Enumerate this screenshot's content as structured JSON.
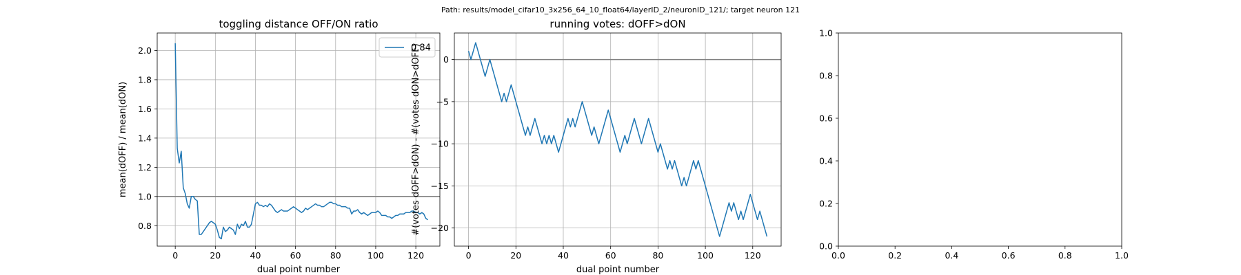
{
  "suptitle": "Path: results/model_cifar10_3x256_64_10_float64/layerID_2/neuronID_121/; target neuron 121",
  "chart_data": [
    {
      "type": "line",
      "title": "toggling distance OFF/ON ratio",
      "xlabel": "dual point number",
      "ylabel": "mean(dOFF) / mean(dON)",
      "xlim": [
        -9,
        132
      ],
      "ylim": [
        0.66,
        2.12
      ],
      "xticks": [
        0,
        20,
        40,
        60,
        80,
        100,
        120
      ],
      "yticks": [
        0.8,
        1.0,
        1.2,
        1.4,
        1.6,
        1.8,
        2.0
      ],
      "ytick_labels": [
        "0.8",
        "1.0",
        "1.2",
        "1.4",
        "1.6",
        "1.8",
        "2.0"
      ],
      "grid": true,
      "hline": 1.0,
      "legend": {
        "position": "upper right",
        "entries": [
          "0.84"
        ]
      },
      "series": [
        {
          "name": "0.84",
          "color": "#1f77b4",
          "y": [
            2.05,
            1.33,
            1.23,
            1.31,
            1.06,
            1.02,
            0.95,
            0.92,
            1.0,
            1.0,
            0.98,
            0.97,
            0.74,
            0.74,
            0.76,
            0.78,
            0.8,
            0.82,
            0.83,
            0.82,
            0.81,
            0.77,
            0.72,
            0.71,
            0.79,
            0.76,
            0.77,
            0.79,
            0.78,
            0.77,
            0.74,
            0.81,
            0.78,
            0.81,
            0.8,
            0.83,
            0.79,
            0.79,
            0.81,
            0.88,
            0.95,
            0.96,
            0.94,
            0.94,
            0.93,
            0.94,
            0.93,
            0.95,
            0.94,
            0.92,
            0.9,
            0.89,
            0.9,
            0.91,
            0.9,
            0.9,
            0.9,
            0.91,
            0.92,
            0.93,
            0.92,
            0.91,
            0.9,
            0.89,
            0.9,
            0.92,
            0.91,
            0.92,
            0.93,
            0.94,
            0.95,
            0.94,
            0.94,
            0.93,
            0.93,
            0.94,
            0.95,
            0.96,
            0.96,
            0.95,
            0.95,
            0.94,
            0.94,
            0.93,
            0.93,
            0.93,
            0.92,
            0.92,
            0.88,
            0.9,
            0.9,
            0.91,
            0.89,
            0.88,
            0.89,
            0.88,
            0.87,
            0.88,
            0.89,
            0.89,
            0.89,
            0.9,
            0.89,
            0.87,
            0.87,
            0.87,
            0.86,
            0.86,
            0.85,
            0.86,
            0.87,
            0.87,
            0.88,
            0.88,
            0.88,
            0.89,
            0.89,
            0.89,
            0.9,
            0.9,
            0.89,
            0.89,
            0.88,
            0.89,
            0.88,
            0.85,
            0.84
          ]
        }
      ]
    },
    {
      "type": "line",
      "title": "running votes: dOFF>dON",
      "xlabel": "dual point number",
      "ylabel": "#(votes dOFF>dON) - #(votes dON>dOFF)",
      "xlim": [
        -6,
        132
      ],
      "ylim": [
        -22.15,
        3.15
      ],
      "xticks": [
        0,
        20,
        40,
        60,
        80,
        100,
        120
      ],
      "yticks": [
        0,
        -5,
        -10,
        -15,
        -20
      ],
      "ytick_labels": [
        "0",
        "−5",
        "−10",
        "−15",
        "−20"
      ],
      "grid": true,
      "hline": 0,
      "series": [
        {
          "color": "#1f77b4",
          "y": [
            1,
            0,
            1,
            2,
            1,
            0,
            -1,
            -2,
            -1,
            0,
            -1,
            -2,
            -3,
            -4,
            -5,
            -4,
            -5,
            -4,
            -3,
            -4,
            -5,
            -6,
            -7,
            -8,
            -9,
            -8,
            -9,
            -8,
            -7,
            -8,
            -9,
            -10,
            -9,
            -10,
            -9,
            -10,
            -9,
            -10,
            -11,
            -10,
            -9,
            -8,
            -7,
            -8,
            -7,
            -8,
            -7,
            -6,
            -5,
            -6,
            -7,
            -8,
            -9,
            -8,
            -9,
            -10,
            -9,
            -8,
            -7,
            -6,
            -7,
            -8,
            -9,
            -10,
            -11,
            -10,
            -9,
            -10,
            -9,
            -8,
            -7,
            -8,
            -9,
            -10,
            -9,
            -8,
            -7,
            -8,
            -9,
            -10,
            -11,
            -10,
            -11,
            -12,
            -13,
            -12,
            -13,
            -12,
            -13,
            -14,
            -15,
            -14,
            -15,
            -14,
            -13,
            -12,
            -13,
            -12,
            -13,
            -14,
            -15,
            -16,
            -17,
            -18,
            -19,
            -20,
            -21,
            -20,
            -19,
            -18,
            -17,
            -18,
            -17,
            -18,
            -19,
            -18,
            -19,
            -18,
            -17,
            -16,
            -17,
            -18,
            -19,
            -18,
            -19,
            -20,
            -21
          ]
        }
      ]
    },
    {
      "type": "line",
      "title": "",
      "xlabel": "",
      "ylabel": "",
      "xlim": [
        0,
        1
      ],
      "ylim": [
        0,
        1
      ],
      "xticks": [
        0,
        0.2,
        0.4,
        0.6,
        0.8,
        1.0
      ],
      "yticks": [
        0,
        0.2,
        0.4,
        0.6,
        0.8,
        1.0
      ],
      "xtick_labels": [
        "0.0",
        "0.2",
        "0.4",
        "0.6",
        "0.8",
        "1.0"
      ],
      "ytick_labels": [
        "0.0",
        "0.2",
        "0.4",
        "0.6",
        "0.8",
        "1.0"
      ],
      "grid": false,
      "series": []
    }
  ]
}
